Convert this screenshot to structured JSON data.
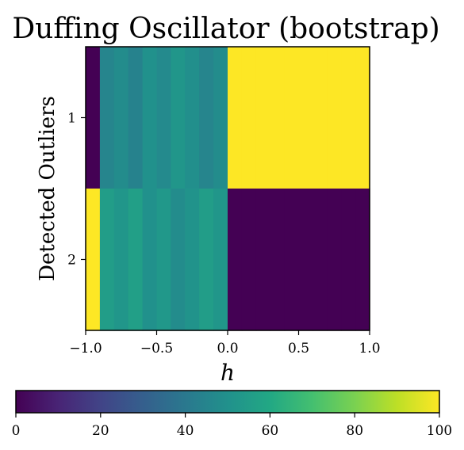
{
  "chart_data": {
    "type": "heatmap",
    "title": "Duffing Oscillator (bootstrap)",
    "xlabel": "h",
    "ylabel": "Detected Outliers",
    "xlim": [
      -1.0,
      1.0
    ],
    "x_ticks": [
      "−1.0",
      "−0.5",
      "0.0",
      "0.5",
      "1.0"
    ],
    "x_tick_values": [
      -1.0,
      -0.5,
      0.0,
      0.5,
      1.0
    ],
    "rows": [
      "1",
      "2"
    ],
    "column_edges": [
      -1.0,
      -0.9,
      -0.8,
      -0.7,
      -0.6,
      -0.5,
      -0.4,
      -0.3,
      -0.2,
      -0.1,
      0.0,
      0.1,
      0.2,
      0.3,
      0.4,
      0.5,
      0.6,
      0.7,
      0.8,
      0.9,
      1.0
    ],
    "values": [
      [
        0,
        45,
        48,
        44,
        50,
        47,
        52,
        49,
        45,
        48,
        100,
        100,
        100,
        100,
        100,
        100,
        100,
        100,
        100,
        100
      ],
      [
        100,
        55,
        52,
        56,
        50,
        53,
        48,
        51,
        55,
        52,
        0,
        0,
        0,
        0,
        0,
        0,
        0,
        0,
        0,
        0
      ]
    ],
    "colormap": "viridis",
    "colorbar": {
      "orientation": "horizontal",
      "range": [
        0,
        100
      ],
      "ticks": [
        "0",
        "20",
        "40",
        "60",
        "80",
        "100"
      ],
      "tick_values": [
        0,
        20,
        40,
        60,
        80,
        100
      ]
    },
    "grid": false
  }
}
